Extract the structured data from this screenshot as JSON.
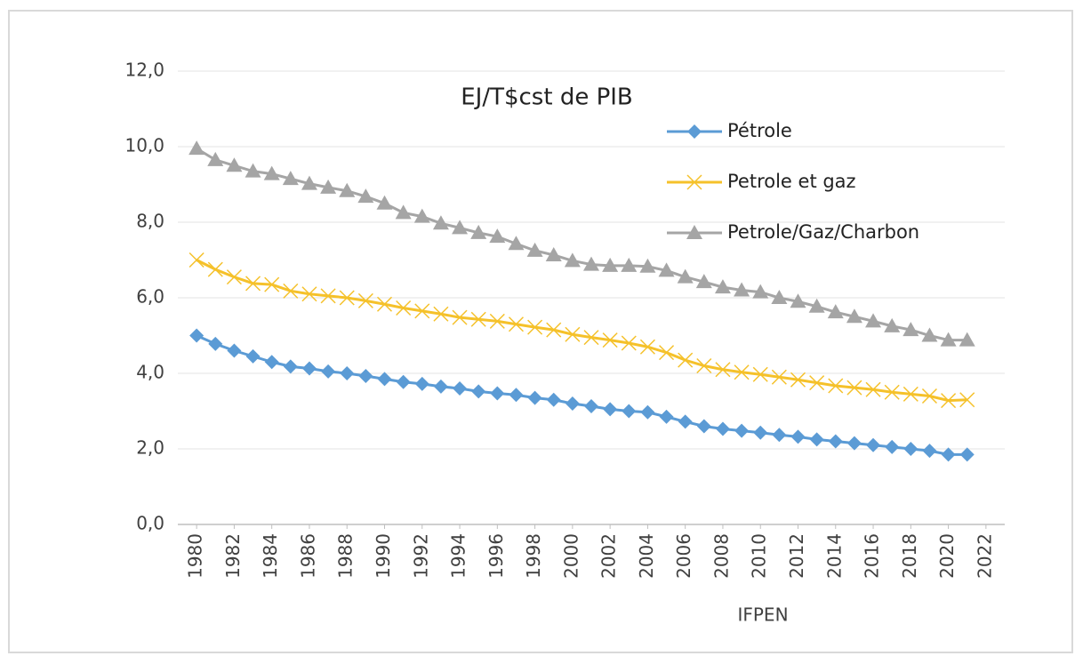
{
  "chart_data": {
    "type": "line",
    "title": "EJ/T$cst de PIB",
    "x_label": "IFPEN",
    "x": [
      1980,
      1981,
      1982,
      1983,
      1984,
      1985,
      1986,
      1987,
      1988,
      1989,
      1990,
      1991,
      1992,
      1993,
      1994,
      1995,
      1996,
      1997,
      1998,
      1999,
      2000,
      2001,
      2002,
      2003,
      2004,
      2005,
      2006,
      2007,
      2008,
      2009,
      2010,
      2011,
      2012,
      2013,
      2014,
      2015,
      2016,
      2017,
      2018,
      2019,
      2020,
      2021
    ],
    "series": [
      {
        "name": "Pétrole",
        "color": "#5b9bd5",
        "marker": "diamond",
        "values": [
          5.0,
          4.78,
          4.6,
          4.45,
          4.3,
          4.18,
          4.13,
          4.05,
          4.0,
          3.93,
          3.85,
          3.77,
          3.72,
          3.65,
          3.6,
          3.52,
          3.47,
          3.43,
          3.35,
          3.3,
          3.2,
          3.13,
          3.05,
          3.0,
          2.97,
          2.85,
          2.72,
          2.6,
          2.53,
          2.48,
          2.43,
          2.37,
          2.32,
          2.25,
          2.2,
          2.15,
          2.1,
          2.05,
          2.0,
          1.95,
          1.85,
          1.85
        ]
      },
      {
        "name": "Petrole et gaz",
        "color": "#f5c12a",
        "marker": "x",
        "values": [
          7.0,
          6.75,
          6.55,
          6.38,
          6.35,
          6.18,
          6.1,
          6.05,
          6.0,
          5.92,
          5.83,
          5.73,
          5.65,
          5.57,
          5.48,
          5.43,
          5.38,
          5.3,
          5.22,
          5.15,
          5.03,
          4.95,
          4.88,
          4.8,
          4.7,
          4.55,
          4.35,
          4.2,
          4.1,
          4.03,
          3.97,
          3.9,
          3.83,
          3.75,
          3.67,
          3.62,
          3.57,
          3.5,
          3.45,
          3.4,
          3.28,
          3.3
        ]
      },
      {
        "name": "Petrole/Gaz/Charbon",
        "color": "#a5a5a5",
        "marker": "triangle",
        "values": [
          9.95,
          9.65,
          9.5,
          9.35,
          9.28,
          9.15,
          9.02,
          8.92,
          8.83,
          8.68,
          8.5,
          8.25,
          8.15,
          7.97,
          7.85,
          7.72,
          7.62,
          7.43,
          7.25,
          7.13,
          6.98,
          6.88,
          6.85,
          6.85,
          6.83,
          6.72,
          6.55,
          6.42,
          6.28,
          6.2,
          6.15,
          6.0,
          5.9,
          5.77,
          5.62,
          5.5,
          5.38,
          5.25,
          5.15,
          5.0,
          4.88,
          4.88
        ]
      }
    ],
    "xlim": [
      1979,
      2023
    ],
    "xticks": [
      1980,
      1982,
      1984,
      1986,
      1988,
      1990,
      1992,
      1994,
      1996,
      1998,
      2000,
      2002,
      2004,
      2006,
      2008,
      2010,
      2012,
      2014,
      2016,
      2018,
      2020,
      2022
    ],
    "ylim": [
      0,
      12
    ],
    "yticks": [
      {
        "value": 0,
        "label": "0,0"
      },
      {
        "value": 2,
        "label": "2,0"
      },
      {
        "value": 4,
        "label": "4,0"
      },
      {
        "value": 6,
        "label": "6,0"
      },
      {
        "value": 8,
        "label": "8,0"
      },
      {
        "value": 10,
        "label": "10,0"
      },
      {
        "value": 12,
        "label": "12,0"
      }
    ],
    "grid": true,
    "legend": "top-right"
  }
}
